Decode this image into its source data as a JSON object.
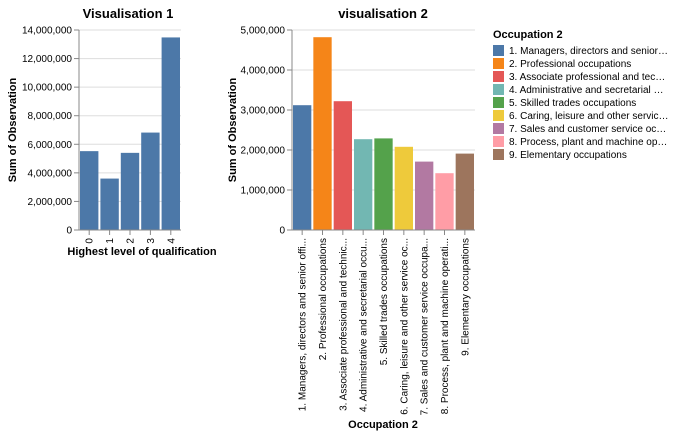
{
  "chart_data": [
    {
      "type": "bar",
      "title": "Visualisation 1",
      "xlabel": "Highest level of qualification",
      "ylabel": "Sum of Observation",
      "categories": [
        "0",
        "1",
        "2",
        "3",
        "4"
      ],
      "values": [
        5520000,
        3600000,
        5400000,
        6820000,
        13480000
      ],
      "ylim": [
        0,
        14000000
      ],
      "yticks": [
        "0",
        "2,000,000",
        "4,000,000",
        "6,000,000",
        "8,000,000",
        "10,000,000",
        "12,000,000",
        "14,000,000"
      ],
      "color": "#4c78a8",
      "grid": true
    },
    {
      "type": "bar",
      "title": "visualisation 2",
      "xlabel": "Occupation 2",
      "ylabel": "Sum of Observation",
      "categories": [
        "1. Managers, directors and senior offi...",
        "2. Professional occupations",
        "3. Associate professional and technic...",
        "4. Administrative and secretarial occu...",
        "5. Skilled trades occupations",
        "6. Caring, leisure and other service oc...",
        "7. Sales and customer service occupa...",
        "8. Process, plant and machine operati...",
        "9. Elementary occupations"
      ],
      "values": [
        3120000,
        4820000,
        3220000,
        2270000,
        2290000,
        2080000,
        1710000,
        1420000,
        1910000
      ],
      "colors": [
        "#4c78a8",
        "#f58518",
        "#e45756",
        "#72b7b2",
        "#54a24b",
        "#eeca3b",
        "#b279a2",
        "#ff9da6",
        "#9d755d"
      ],
      "ylim": [
        0,
        5000000
      ],
      "yticks": [
        "0",
        "1,000,000",
        "2,000,000",
        "3,000,000",
        "4,000,000",
        "5,000,000"
      ],
      "grid": true,
      "legend": {
        "title": "Occupation 2",
        "placement": "right",
        "entries": [
          "1. Managers, directors and senior…",
          "2. Professional occupations",
          "3. Associate professional and tec…",
          "4. Administrative and secretarial …",
          "5. Skilled trades occupations",
          "6. Caring, leisure and other servic…",
          "7. Sales and customer service oc…",
          "8. Process, plant and machine op…",
          "9. Elementary occupations"
        ]
      }
    }
  ]
}
